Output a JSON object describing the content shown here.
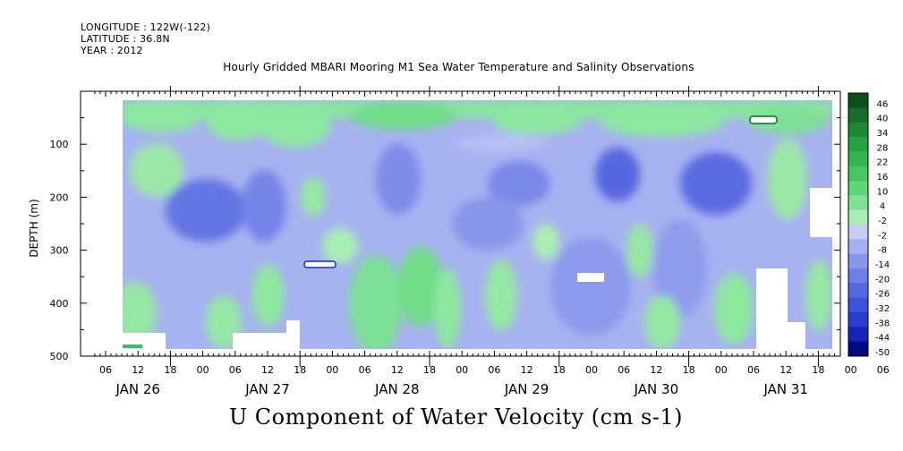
{
  "header": {
    "longitude": "LONGITUDE : 122W(-122)",
    "latitude": "LATITUDE : 36.8N",
    "year": "YEAR : 2012"
  },
  "chart_data": {
    "type": "heatmap",
    "title": "Hourly Gridded MBARI Mooring M1 Sea Water Temperature and Salinity Observations",
    "footer": "U Component of Water Velocity (cm s-1)",
    "ylabel": "DEPTH (m)",
    "xlabel": "",
    "y_inverted": true,
    "ylim": [
      500,
      10
    ],
    "y_ticks": [
      100,
      200,
      300,
      400,
      500
    ],
    "x_hour_ticks": [
      "06",
      "12",
      "18",
      "00",
      "06",
      "12",
      "18",
      "00",
      "06",
      "12",
      "18",
      "00",
      "06",
      "12",
      "18",
      "00",
      "06",
      "12",
      "18",
      "00",
      "06",
      "12",
      "18",
      "00",
      "06",
      "12",
      "18"
    ],
    "x_day_labels": [
      "JAN 26",
      "JAN 27",
      "JAN 28",
      "JAN 29",
      "JAN 30",
      "JAN 31"
    ],
    "colorbar_levels": [
      46,
      40,
      34,
      28,
      22,
      16,
      10,
      4,
      -2,
      -8,
      -14,
      -20,
      -26,
      -32,
      -38,
      -44,
      -50
    ],
    "colorbar_all_labels": [
      "46",
      "40",
      "34",
      "28",
      "22",
      "16",
      "10",
      "4",
      "-2",
      "-2",
      "-8",
      "-14",
      "-20",
      "-26",
      "-32",
      "-38",
      "-44",
      "-50"
    ],
    "colormap": {
      "strong_positive": "#0a5a1e",
      "positive": "#33c060",
      "weak_positive": "#9ff0a8",
      "near_zero": "#c8d0f5",
      "weak_negative": "#9aa6ee",
      "negative": "#6172e6",
      "strong_negative": "#000a80"
    },
    "grid": false,
    "legend": "right colorbar"
  }
}
